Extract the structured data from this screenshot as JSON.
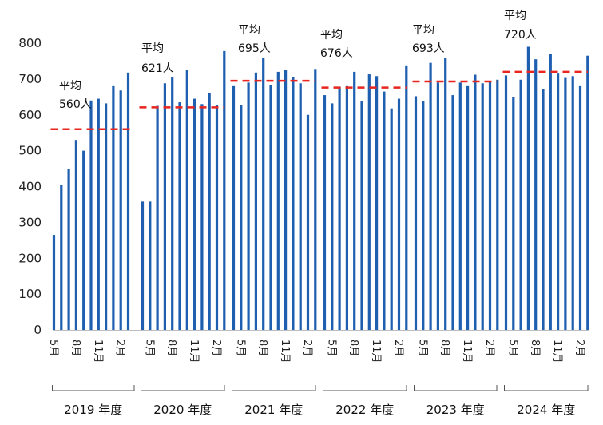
{
  "chart_data": {
    "type": "bar",
    "title": "",
    "xlabel": "",
    "ylabel": "",
    "ylim": [
      0,
      800
    ],
    "yticks": [
      0,
      100,
      200,
      300,
      400,
      500,
      600,
      700,
      800
    ],
    "grid": false,
    "bar_color": "#1f5fb0",
    "avg_line_color": "#e8251f",
    "month_tick_labels": [
      "5月",
      "8月",
      "11月",
      "2月"
    ],
    "years": [
      {
        "label": "2019 年度",
        "avg_title": "平均",
        "avg_text": "560人",
        "average": 560,
        "values": [
          265,
          405,
          450,
          530,
          500,
          640,
          645,
          632,
          680,
          668,
          718
        ]
      },
      {
        "label": "2020 年度",
        "avg_title": "平均",
        "avg_text": "621人",
        "average": 621,
        "values": [
          358,
          358,
          625,
          688,
          705,
          635,
          725,
          645,
          630,
          660,
          628,
          778
        ]
      },
      {
        "label": "2021 年度",
        "avg_title": "平均",
        "avg_text": "695人",
        "average": 695,
        "values": [
          680,
          628,
          690,
          718,
          758,
          682,
          720,
          725,
          705,
          688,
          600,
          728
        ]
      },
      {
        "label": "2022 年度",
        "avg_title": "平均",
        "avg_text": "676人",
        "average": 676,
        "values": [
          655,
          632,
          678,
          680,
          720,
          638,
          713,
          708,
          665,
          618,
          645,
          738
        ]
      },
      {
        "label": "2023 年度",
        "avg_title": "平均",
        "avg_text": "693人",
        "average": 693,
        "values": [
          652,
          638,
          745,
          690,
          758,
          655,
          690,
          680,
          712,
          688,
          692,
          698
        ]
      },
      {
        "label": "2024 年度",
        "avg_title": "平均",
        "avg_text": "720人",
        "average": 720,
        "values": [
          710,
          650,
          698,
          790,
          755,
          672,
          770,
          715,
          703,
          708,
          680,
          765
        ]
      }
    ]
  }
}
